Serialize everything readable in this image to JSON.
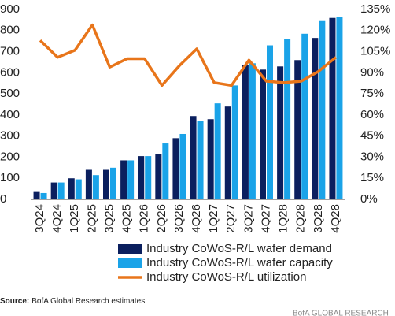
{
  "chart_data": {
    "type": "bar_line",
    "categories": [
      "3Q24",
      "4Q24",
      "1Q25",
      "2Q25",
      "3Q25",
      "4Q25",
      "1Q26",
      "2Q26",
      "3Q26",
      "4Q26",
      "1Q27",
      "2Q27",
      "3Q27",
      "4Q27",
      "1Q28",
      "2Q28",
      "3Q28",
      "4Q28"
    ],
    "series": [
      {
        "name": "Industry CoWoS-R/L wafer demand",
        "type": "bar",
        "color": "#0b1f5e",
        "values": [
          35,
          80,
          100,
          140,
          140,
          185,
          205,
          215,
          290,
          395,
          380,
          440,
          635,
          615,
          630,
          660,
          765,
          860
        ]
      },
      {
        "name": "Industry CoWoS-R/L wafer capacity",
        "type": "bar",
        "color": "#1aa3e8",
        "values": [
          30,
          80,
          95,
          115,
          150,
          185,
          205,
          265,
          310,
          370,
          455,
          540,
          645,
          730,
          760,
          785,
          845,
          865
        ]
      },
      {
        "name": "Industry CoWoS-R/L utilization",
        "type": "line",
        "axis": "y2",
        "color": "#e8751a",
        "values": [
          113,
          101,
          106,
          124,
          94,
          100,
          100,
          81,
          95,
          107,
          83,
          81,
          99,
          84,
          83,
          84,
          91,
          101
        ]
      }
    ],
    "ylim": [
      0,
      900
    ],
    "yticks": [
      0,
      100,
      200,
      300,
      400,
      500,
      600,
      700,
      800,
      900
    ],
    "y2lim": [
      0,
      135
    ],
    "y2ticks": [
      {
        "value": 0,
        "label": "0%"
      },
      {
        "value": 15,
        "label": "15%"
      },
      {
        "value": 30,
        "label": "30%"
      },
      {
        "value": 45,
        "label": "45%"
      },
      {
        "value": 60,
        "label": "60%"
      },
      {
        "value": 75,
        "label": "75%"
      },
      {
        "value": 90,
        "label": "90%"
      },
      {
        "value": 105,
        "label": "105%"
      },
      {
        "value": 120,
        "label": "120%"
      },
      {
        "value": 135,
        "label": "135%"
      }
    ],
    "grid": false,
    "legend": "bottom",
    "source_label": "Source:",
    "source_text": "BofA Global Research estimates",
    "brand": "BofA GLOBAL RESEARCH"
  }
}
